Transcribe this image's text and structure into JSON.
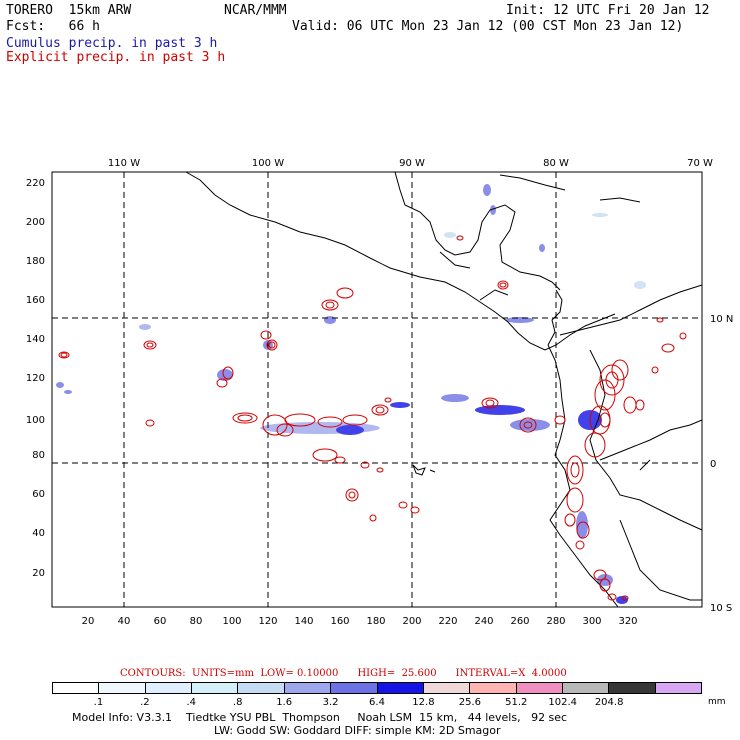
{
  "header": {
    "model": "TORERO  15km ARW",
    "org": "NCAR/MMM",
    "init": "Init: 12 UTC Fri 20 Jan 12",
    "fcst": "Fcst:   66 h",
    "valid": "Valid: 06 UTC Mon 23 Jan 12 (00 CST Mon 23 Jan 12)",
    "legend_cumulus": "Cumulus precip. in past 3 h",
    "legend_explicit": "Explicit precip. in past 3 h"
  },
  "map": {
    "top_lon_labels": [
      "110 W",
      "100 W",
      "90 W",
      "80 W",
      "70 W"
    ],
    "right_lat_labels": [
      "10 N",
      "0",
      "10 S"
    ],
    "y_ticks": [
      "20",
      "40",
      "60",
      "80",
      "100",
      "120",
      "140",
      "160",
      "180",
      "200",
      "220"
    ],
    "x_ticks": [
      "20",
      "40",
      "60",
      "80",
      "100",
      "120",
      "140",
      "160",
      "180",
      "200",
      "220",
      "240",
      "260",
      "280",
      "300",
      "320"
    ]
  },
  "contours_line": "CONTOURS:  UNITS=mm  LOW= 0.10000      HIGH=  25.600      INTERVAL=X  4.0000",
  "colorbar": {
    "colors": [
      "#ffffff",
      "#f0f7ff",
      "#e0efff",
      "#d4f0f8",
      "#c6dcf4",
      "#9ea6ec",
      "#6d72e4",
      "#1414e6",
      "#f0d8d8",
      "#ffb4b4",
      "#f090c0",
      "#b8b8b8",
      "#383838",
      "#d8a8f4"
    ],
    "labels": [
      ".1",
      ".2",
      ".4",
      ".8",
      "1.6",
      "3.2",
      "6.4",
      "12.8",
      "25.6",
      "51.2",
      "102.4",
      "204.8"
    ],
    "units": "mm"
  },
  "footer": {
    "line1": "Model Info: V3.3.1    Tiedtke YSU PBL  Thompson     Noah LSM  15 km,   44 levels,   92 sec",
    "line2": "LW: Godd SW: Goddard DIFF: simple KM: 2D Smagor"
  }
}
